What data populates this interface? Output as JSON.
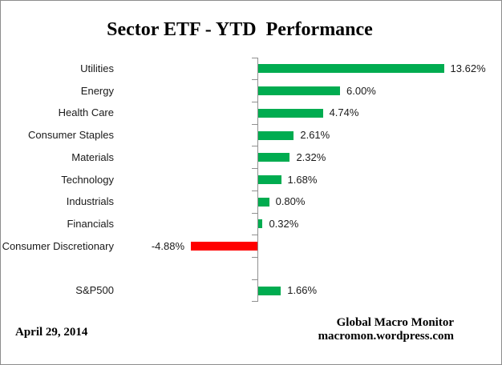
{
  "footer": {
    "date": "April 29, 2014",
    "credit_line1": "Global Macro Monitor",
    "credit_line2": "macromon.wordpress.com"
  },
  "colors": {
    "positive_bar": "#00AC50",
    "negative_bar": "#FF0000",
    "axis": "#909090",
    "frame_border": "#8D8D8D",
    "text": "#000000"
  },
  "chart_data": {
    "type": "bar",
    "orientation": "horizontal",
    "title": "Sector ETF - YTD  Performance",
    "xlabel": "",
    "ylabel": "",
    "value_unit": "%",
    "xlim": [
      -5,
      18
    ],
    "grid": false,
    "legend": false,
    "value_axis_visible": false,
    "categories": [
      "Utilities",
      "Energy",
      "Health Care",
      "Consumer Staples",
      "Materials",
      "Technology",
      "Industrials",
      "Financials",
      "Consumer Discretionary",
      "",
      "S&P500"
    ],
    "values": [
      13.62,
      6.0,
      4.74,
      2.61,
      2.32,
      1.68,
      0.8,
      0.32,
      -4.88,
      null,
      1.66
    ],
    "value_labels": [
      "13.62%",
      "6.00%",
      "4.74%",
      "2.61%",
      "2.32%",
      "1.68%",
      "0.80%",
      "0.32%",
      "-4.88%",
      "",
      "1.66%"
    ]
  }
}
